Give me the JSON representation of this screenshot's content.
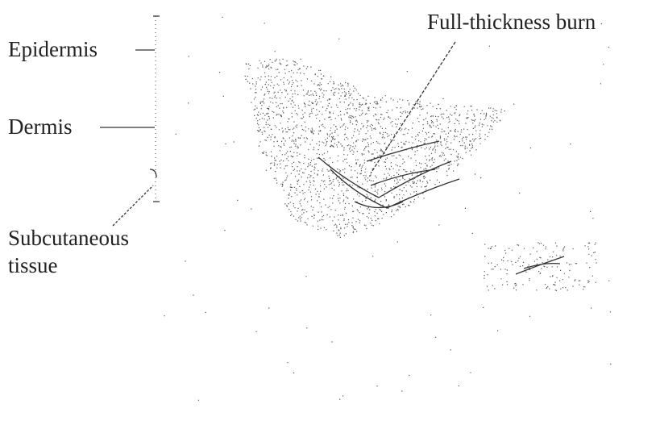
{
  "labels": {
    "epidermis": "Epidermis",
    "dermis": "Dermis",
    "subcutaneous": [
      "Subcutaneous",
      "tissue"
    ],
    "burn": "Full-thickness burn"
  }
}
